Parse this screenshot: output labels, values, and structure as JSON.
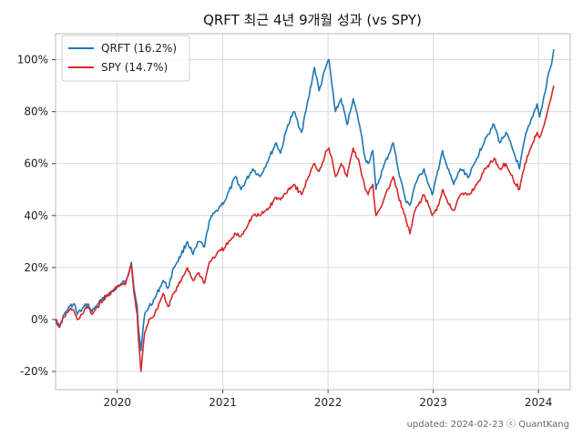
{
  "chart_data": {
    "type": "line",
    "title": "QRFT 최근 4년 9개월 성과 (vs SPY)",
    "xlabel": "",
    "ylabel": "",
    "x_ticks": [
      "2020",
      "2021",
      "2022",
      "2023",
      "2024"
    ],
    "y_ticks": [
      "-20%",
      "0%",
      "20%",
      "40%",
      "60%",
      "80%",
      "100%"
    ],
    "y_tick_values": [
      -20,
      0,
      20,
      40,
      60,
      80,
      100
    ],
    "xlim": [
      "2019-06-01",
      "2024-04-20"
    ],
    "ylim": [
      -27,
      110
    ],
    "grid": true,
    "legend_position": "top-left",
    "footer": "updated: 2024-02-23 ⓒ QuantKang",
    "series": [
      {
        "name": "QRFT (16.2%)",
        "color": "#1f77b4",
        "points": [
          [
            "2019-06-01",
            0
          ],
          [
            "2019-06-15",
            -3
          ],
          [
            "2019-07-01",
            2
          ],
          [
            "2019-07-20",
            5
          ],
          [
            "2019-08-05",
            6
          ],
          [
            "2019-08-15",
            2
          ],
          [
            "2019-09-01",
            4
          ],
          [
            "2019-09-20",
            6
          ],
          [
            "2019-10-05",
            3
          ],
          [
            "2019-10-25",
            6
          ],
          [
            "2019-11-15",
            8
          ],
          [
            "2019-12-15",
            11
          ],
          [
            "2020-01-10",
            13
          ],
          [
            "2020-01-31",
            15
          ],
          [
            "2020-02-19",
            22
          ],
          [
            "2020-02-28",
            12
          ],
          [
            "2020-03-10",
            5
          ],
          [
            "2020-03-16",
            -5
          ],
          [
            "2020-03-23",
            -12
          ],
          [
            "2020-04-05",
            2
          ],
          [
            "2020-04-20",
            5
          ],
          [
            "2020-05-10",
            8
          ],
          [
            "2020-06-08",
            15
          ],
          [
            "2020-06-25",
            12
          ],
          [
            "2020-07-15",
            20
          ],
          [
            "2020-08-10",
            25
          ],
          [
            "2020-08-31",
            30
          ],
          [
            "2020-09-20",
            25
          ],
          [
            "2020-10-10",
            30
          ],
          [
            "2020-10-30",
            28
          ],
          [
            "2020-11-15",
            38
          ],
          [
            "2020-12-10",
            42
          ],
          [
            "2021-01-10",
            46
          ],
          [
            "2021-02-15",
            55
          ],
          [
            "2021-03-05",
            50
          ],
          [
            "2021-04-15",
            58
          ],
          [
            "2021-05-10",
            55
          ],
          [
            "2021-06-10",
            62
          ],
          [
            "2021-07-05",
            68
          ],
          [
            "2021-07-20",
            64
          ],
          [
            "2021-08-15",
            75
          ],
          [
            "2021-09-05",
            80
          ],
          [
            "2021-10-01",
            72
          ],
          [
            "2021-10-25",
            85
          ],
          [
            "2021-11-15",
            97
          ],
          [
            "2021-12-01",
            88
          ],
          [
            "2021-12-27",
            98
          ],
          [
            "2022-01-04",
            100
          ],
          [
            "2022-01-15",
            90
          ],
          [
            "2022-01-27",
            80
          ],
          [
            "2022-02-15",
            85
          ],
          [
            "2022-03-08",
            75
          ],
          [
            "2022-03-29",
            85
          ],
          [
            "2022-04-20",
            75
          ],
          [
            "2022-05-10",
            62
          ],
          [
            "2022-05-20",
            60
          ],
          [
            "2022-06-05",
            65
          ],
          [
            "2022-06-16",
            50
          ],
          [
            "2022-07-10",
            58
          ],
          [
            "2022-08-15",
            68
          ],
          [
            "2022-09-01",
            58
          ],
          [
            "2022-09-29",
            45
          ],
          [
            "2022-10-12",
            44
          ],
          [
            "2022-10-30",
            52
          ],
          [
            "2022-11-30",
            58
          ],
          [
            "2022-12-15",
            52
          ],
          [
            "2022-12-28",
            48
          ],
          [
            "2023-01-20",
            58
          ],
          [
            "2023-02-02",
            65
          ],
          [
            "2023-02-20",
            58
          ],
          [
            "2023-03-13",
            52
          ],
          [
            "2023-04-05",
            58
          ],
          [
            "2023-05-05",
            55
          ],
          [
            "2023-06-01",
            62
          ],
          [
            "2023-07-01",
            70
          ],
          [
            "2023-07-31",
            75
          ],
          [
            "2023-08-20",
            68
          ],
          [
            "2023-09-10",
            72
          ],
          [
            "2023-10-05",
            65
          ],
          [
            "2023-10-27",
            58
          ],
          [
            "2023-11-15",
            70
          ],
          [
            "2023-12-01",
            75
          ],
          [
            "2023-12-27",
            83
          ],
          [
            "2024-01-05",
            78
          ],
          [
            "2024-01-25",
            88
          ],
          [
            "2024-02-05",
            95
          ],
          [
            "2024-02-15",
            98
          ],
          [
            "2024-02-23",
            104
          ]
        ]
      },
      {
        "name": "SPY (14.7%)",
        "color": "#d62728",
        "points": [
          [
            "2019-06-01",
            0
          ],
          [
            "2019-06-15",
            -3
          ],
          [
            "2019-07-01",
            1
          ],
          [
            "2019-07-20",
            4
          ],
          [
            "2019-08-05",
            3
          ],
          [
            "2019-08-15",
            0
          ],
          [
            "2019-09-01",
            2
          ],
          [
            "2019-09-20",
            5
          ],
          [
            "2019-10-05",
            2
          ],
          [
            "2019-10-25",
            5
          ],
          [
            "2019-11-15",
            8
          ],
          [
            "2019-12-15",
            11
          ],
          [
            "2020-01-10",
            13
          ],
          [
            "2020-01-31",
            14
          ],
          [
            "2020-02-19",
            21
          ],
          [
            "2020-02-28",
            10
          ],
          [
            "2020-03-10",
            2
          ],
          [
            "2020-03-16",
            -10
          ],
          [
            "2020-03-23",
            -20
          ],
          [
            "2020-04-05",
            -5
          ],
          [
            "2020-04-20",
            0
          ],
          [
            "2020-05-10",
            2
          ],
          [
            "2020-06-08",
            10
          ],
          [
            "2020-06-25",
            5
          ],
          [
            "2020-07-15",
            10
          ],
          [
            "2020-08-10",
            15
          ],
          [
            "2020-08-31",
            20
          ],
          [
            "2020-09-20",
            15
          ],
          [
            "2020-10-10",
            18
          ],
          [
            "2020-10-30",
            14
          ],
          [
            "2020-11-15",
            22
          ],
          [
            "2020-12-10",
            25
          ],
          [
            "2021-01-10",
            28
          ],
          [
            "2021-02-15",
            33
          ],
          [
            "2021-03-05",
            32
          ],
          [
            "2021-04-15",
            40
          ],
          [
            "2021-05-10",
            40
          ],
          [
            "2021-06-10",
            43
          ],
          [
            "2021-07-05",
            47
          ],
          [
            "2021-07-20",
            46
          ],
          [
            "2021-08-15",
            50
          ],
          [
            "2021-09-05",
            52
          ],
          [
            "2021-10-01",
            48
          ],
          [
            "2021-10-25",
            55
          ],
          [
            "2021-11-15",
            60
          ],
          [
            "2021-12-01",
            57
          ],
          [
            "2021-12-27",
            65
          ],
          [
            "2022-01-04",
            66
          ],
          [
            "2022-01-15",
            62
          ],
          [
            "2022-01-27",
            55
          ],
          [
            "2022-02-15",
            60
          ],
          [
            "2022-03-08",
            55
          ],
          [
            "2022-03-29",
            66
          ],
          [
            "2022-04-20",
            60
          ],
          [
            "2022-05-10",
            50
          ],
          [
            "2022-05-20",
            48
          ],
          [
            "2022-06-05",
            52
          ],
          [
            "2022-06-16",
            40
          ],
          [
            "2022-07-10",
            45
          ],
          [
            "2022-08-15",
            55
          ],
          [
            "2022-09-01",
            48
          ],
          [
            "2022-09-29",
            38
          ],
          [
            "2022-10-12",
            33
          ],
          [
            "2022-10-30",
            42
          ],
          [
            "2022-11-30",
            48
          ],
          [
            "2022-12-15",
            44
          ],
          [
            "2022-12-28",
            40
          ],
          [
            "2023-01-20",
            44
          ],
          [
            "2023-02-02",
            50
          ],
          [
            "2023-02-20",
            45
          ],
          [
            "2023-03-13",
            42
          ],
          [
            "2023-04-05",
            48
          ],
          [
            "2023-05-05",
            48
          ],
          [
            "2023-06-01",
            52
          ],
          [
            "2023-07-01",
            58
          ],
          [
            "2023-07-31",
            62
          ],
          [
            "2023-08-20",
            58
          ],
          [
            "2023-09-10",
            60
          ],
          [
            "2023-10-05",
            54
          ],
          [
            "2023-10-27",
            50
          ],
          [
            "2023-11-15",
            60
          ],
          [
            "2023-12-01",
            65
          ],
          [
            "2023-12-27",
            72
          ],
          [
            "2024-01-05",
            70
          ],
          [
            "2024-01-25",
            77
          ],
          [
            "2024-02-05",
            82
          ],
          [
            "2024-02-15",
            86
          ],
          [
            "2024-02-23",
            90
          ]
        ]
      }
    ]
  }
}
